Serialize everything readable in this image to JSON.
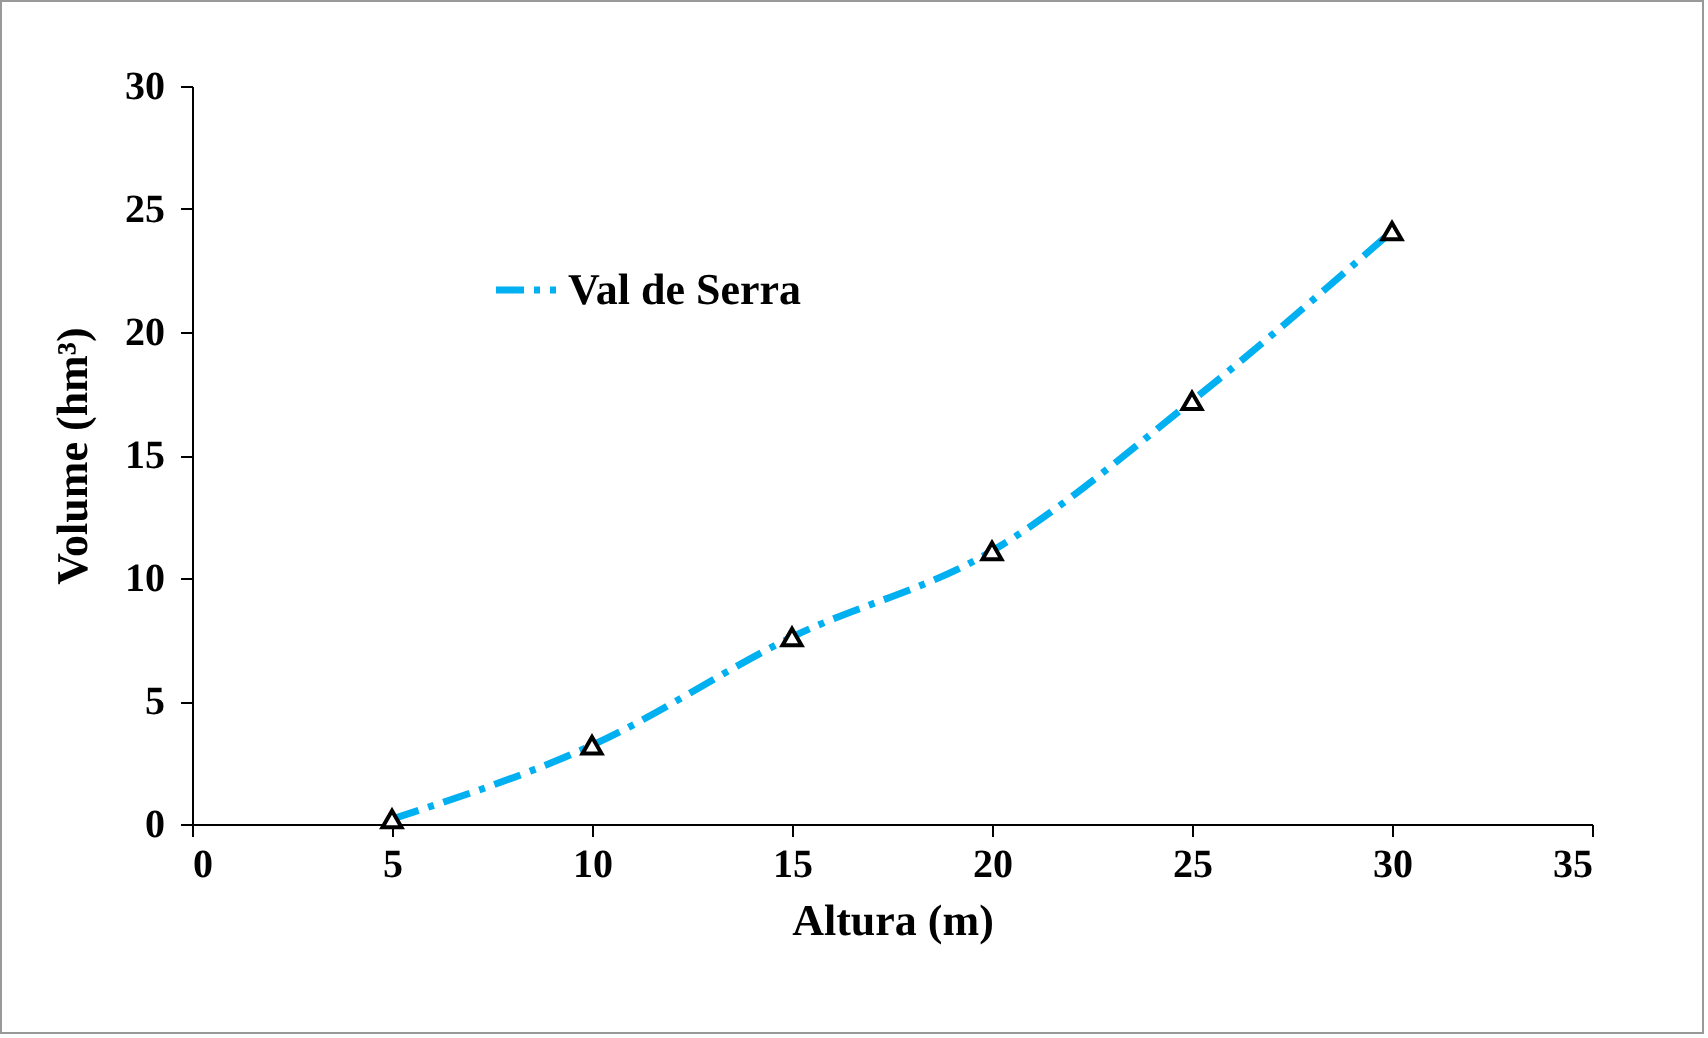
{
  "chart_data": {
    "type": "line",
    "xlabel": "Altura (m)",
    "ylabel": "Volume (hm³)",
    "x": [
      5,
      10,
      15,
      20,
      25,
      30
    ],
    "series": [
      {
        "name": "Val de Serra",
        "color": "#00b0f0",
        "values": [
          0.2,
          3.2,
          7.6,
          11.1,
          17.2,
          24.1
        ]
      }
    ],
    "xlim": [
      0,
      35
    ],
    "xticks": [
      0,
      5,
      10,
      15,
      20,
      25,
      30,
      35
    ],
    "ylim": [
      0,
      30
    ],
    "yticks": [
      0,
      5,
      10,
      15,
      20,
      25,
      30
    ],
    "grid": false,
    "legend": "top left",
    "marker": "triangle",
    "line_style": "dashed"
  }
}
